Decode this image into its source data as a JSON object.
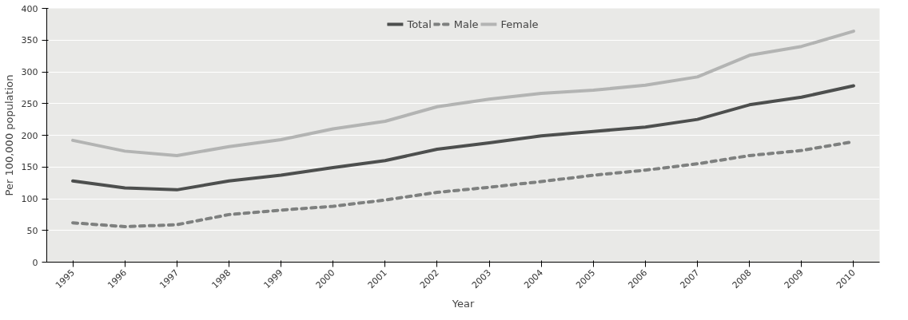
{
  "chart_data": {
    "type": "line",
    "xlabel": "Year",
    "ylabel": "Per 100,000 population",
    "categories": [
      "1995",
      "1996",
      "1997",
      "1998",
      "1999",
      "2000",
      "2001",
      "2002",
      "2003",
      "2004",
      "2005",
      "2006",
      "2007",
      "2008",
      "2009",
      "2010"
    ],
    "series": [
      {
        "name": "Total",
        "color": "#4d4f4e",
        "line_style": "solid",
        "values": [
          128,
          117,
          114,
          128,
          137,
          149,
          160,
          178,
          188,
          199,
          206,
          213,
          225,
          248,
          260,
          278
        ]
      },
      {
        "name": "Male",
        "color": "#7e807f",
        "line_style": "dashed",
        "values": [
          62,
          56,
          59,
          75,
          82,
          88,
          98,
          110,
          118,
          127,
          137,
          145,
          155,
          168,
          176,
          190
        ]
      },
      {
        "name": "Female",
        "color": "#b3b4b3",
        "line_style": "solid",
        "values": [
          192,
          175,
          168,
          182,
          193,
          210,
          222,
          245,
          257,
          266,
          271,
          279,
          292,
          326,
          340,
          364
        ]
      }
    ],
    "ylim": [
      0,
      400
    ],
    "yticks": [
      0,
      50,
      100,
      150,
      200,
      250,
      300,
      350,
      400
    ],
    "grid": "y",
    "legend": "top",
    "marker": "none"
  }
}
